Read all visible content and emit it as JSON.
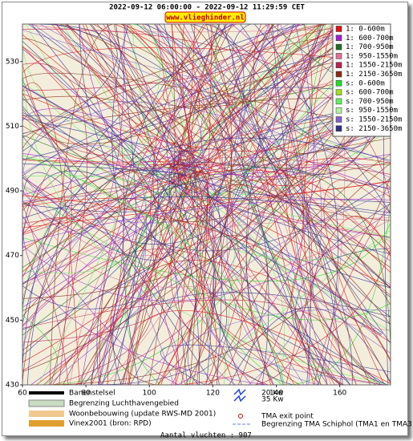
{
  "header": {
    "title": "2022-09-12 06:00:00 - 2022-09-12 11:29:59 CET",
    "site": "www.vlieghinder.nl"
  },
  "map": {
    "xlim": [
      60,
      176
    ],
    "ylim": [
      430,
      541.6
    ],
    "xticks": [
      60,
      80,
      100,
      120,
      140,
      160
    ],
    "yticks": [
      430,
      450,
      470,
      490,
      510,
      530
    ]
  },
  "legend": [
    {
      "label": "1: 0-600m",
      "color": "#e01010"
    },
    {
      "label": "1: 600-700m",
      "color": "#a020d0"
    },
    {
      "label": "1: 700-950m",
      "color": "#207020"
    },
    {
      "label": "1: 950-1550m",
      "color": "#e07090"
    },
    {
      "label": "1: 1550-2150m",
      "color": "#c02050"
    },
    {
      "label": "1: 2150-3650m",
      "color": "#8b2a10"
    },
    {
      "label": "s: 0-600m",
      "color": "#20e020"
    },
    {
      "label": "s: 600-700m",
      "color": "#a0e020"
    },
    {
      "label": "s: 700-950m",
      "color": "#60f060"
    },
    {
      "label": "s: 950-1550m",
      "color": "#b0f0a0"
    },
    {
      "label": "s: 1550-2150m",
      "color": "#8060d0"
    },
    {
      "label": "s: 2150-3650m",
      "color": "#303090"
    }
  ],
  "footer": {
    "items": [
      "Banenstelsel",
      "Begrenzing Luchthavengebied",
      "Woonbebouwing (update RWS-MD 2001)",
      "Vinex2001 (bron: RPD)"
    ],
    "capacity": [
      "20 Kw",
      "35 Kw"
    ],
    "tma_exit": "TMA exit point",
    "tma_border": "Begrenzing TMA Schiphol  (TMA1 en TMA3)",
    "count": "Aantal vluchten : 907"
  }
}
